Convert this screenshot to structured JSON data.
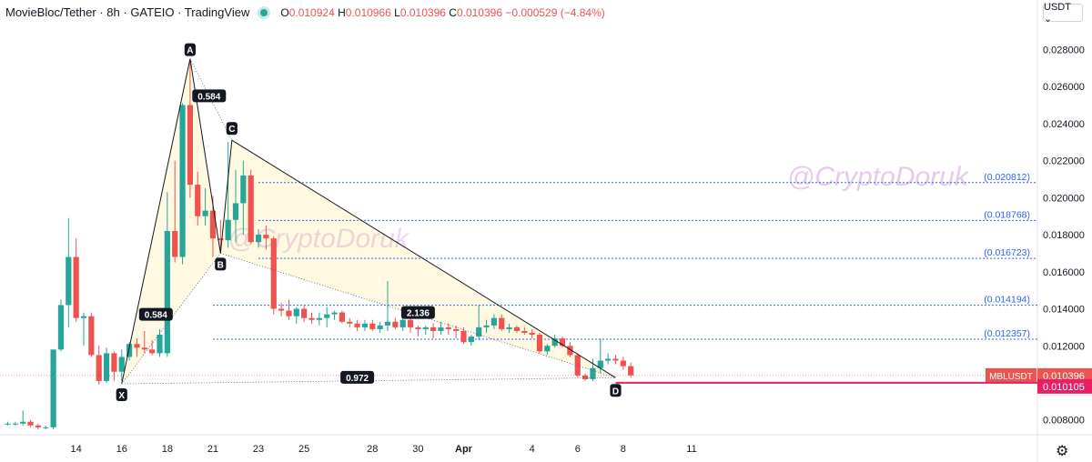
{
  "header": {
    "symbol": "MovieBloc/Tether",
    "interval": "8h",
    "exchange": "GATEIO",
    "source": "TradingView",
    "ohlc": {
      "o_label": "O",
      "o": "0.010924",
      "h_label": "H",
      "h": "0.010966",
      "l_label": "L",
      "l": "0.010396",
      "c_label": "C",
      "c": "0.010396",
      "change": "−0.000529 (−4.84%)"
    }
  },
  "currency_button": "USDT ⌄",
  "watermark": "@CryptoDoruk",
  "colors": {
    "up": "#26a69a",
    "down": "#ef5350",
    "level": "#2962ff",
    "price_tag": "#ef5350",
    "pattern_fill": "#fff8dc"
  },
  "chart_data": {
    "type": "candlestick",
    "y_range": [
      0.0072,
      0.0292
    ],
    "y_ticks": [
      "0.008000",
      "0.010000",
      "0.012000",
      "0.014000",
      "0.016000",
      "0.018000",
      "0.020000",
      "0.022000",
      "0.024000",
      "0.026000",
      "0.028000"
    ],
    "x_ticks": [
      {
        "i": 9,
        "label": "14"
      },
      {
        "i": 15,
        "label": "16"
      },
      {
        "i": 21,
        "label": "18"
      },
      {
        "i": 27,
        "label": "21"
      },
      {
        "i": 33,
        "label": "23"
      },
      {
        "i": 39,
        "label": "25"
      },
      {
        "i": 48,
        "label": "28"
      },
      {
        "i": 54,
        "label": "30"
      },
      {
        "i": 60,
        "label": "Apr"
      },
      {
        "i": 69,
        "label": "4"
      },
      {
        "i": 75,
        "label": "6"
      },
      {
        "i": 81,
        "label": "8"
      },
      {
        "i": 90,
        "label": "11"
      }
    ],
    "candles": [
      [
        0.0078,
        0.0079,
        0.0077,
        0.0078
      ],
      [
        0.0078,
        0.0079,
        0.0077,
        0.0078
      ],
      [
        0.0078,
        0.0085,
        0.0077,
        0.0079
      ],
      [
        0.0079,
        0.008,
        0.0076,
        0.0077
      ],
      [
        0.0077,
        0.0078,
        0.0075,
        0.0076
      ],
      [
        0.0076,
        0.0077,
        0.0075,
        0.0076
      ],
      [
        0.0076,
        0.0118,
        0.0075,
        0.0118
      ],
      [
        0.0118,
        0.0145,
        0.0117,
        0.0142
      ],
      [
        0.0142,
        0.0189,
        0.013,
        0.0168
      ],
      [
        0.0168,
        0.0178,
        0.0133,
        0.0135
      ],
      [
        0.0135,
        0.0138,
        0.012,
        0.0136
      ],
      [
        0.0136,
        0.0138,
        0.0114,
        0.0115
      ],
      [
        0.0115,
        0.012,
        0.0099,
        0.0101
      ],
      [
        0.0101,
        0.0119,
        0.01,
        0.0116
      ],
      [
        0.0116,
        0.0117,
        0.0101,
        0.0106
      ],
      [
        0.0106,
        0.0118,
        0.0101,
        0.0114
      ],
      [
        0.0114,
        0.0122,
        0.0112,
        0.0121
      ],
      [
        0.0121,
        0.0124,
        0.0114,
        0.0119
      ],
      [
        0.0119,
        0.0128,
        0.0116,
        0.0118
      ],
      [
        0.0118,
        0.0123,
        0.0115,
        0.0116
      ],
      [
        0.0116,
        0.0129,
        0.0114,
        0.0126
      ],
      [
        0.0116,
        0.0203,
        0.0114,
        0.0182
      ],
      [
        0.0182,
        0.022,
        0.0165,
        0.0168
      ],
      [
        0.0168,
        0.0251,
        0.0164,
        0.025
      ],
      [
        0.025,
        0.0274,
        0.02,
        0.0207
      ],
      [
        0.0207,
        0.0214,
        0.0185,
        0.019
      ],
      [
        0.019,
        0.0205,
        0.0185,
        0.0193
      ],
      [
        0.0193,
        0.0201,
        0.0168,
        0.0178
      ],
      [
        0.0178,
        0.0188,
        0.017,
        0.0177
      ],
      [
        0.0177,
        0.023,
        0.0173,
        0.0188
      ],
      [
        0.0188,
        0.0215,
        0.0176,
        0.0197
      ],
      [
        0.0197,
        0.022,
        0.018,
        0.0212
      ],
      [
        0.0212,
        0.0215,
        0.0175,
        0.0176
      ],
      [
        0.0176,
        0.0183,
        0.0173,
        0.018
      ],
      [
        0.018,
        0.0185,
        0.0172,
        0.0178
      ],
      [
        0.0178,
        0.0179,
        0.0137,
        0.014
      ],
      [
        0.014,
        0.0143,
        0.0136,
        0.0139
      ],
      [
        0.0139,
        0.0145,
        0.0134,
        0.0136
      ],
      [
        0.0136,
        0.0141,
        0.0132,
        0.014
      ],
      [
        0.014,
        0.0142,
        0.0133,
        0.0135
      ],
      [
        0.0135,
        0.0138,
        0.0132,
        0.0134
      ],
      [
        0.0134,
        0.0138,
        0.0131,
        0.0135
      ],
      [
        0.0135,
        0.0141,
        0.013,
        0.0137
      ],
      [
        0.0137,
        0.0139,
        0.0134,
        0.0138
      ],
      [
        0.0138,
        0.0139,
        0.0132,
        0.0133
      ],
      [
        0.0133,
        0.0135,
        0.013,
        0.0132
      ],
      [
        0.0132,
        0.0134,
        0.0128,
        0.013
      ],
      [
        0.013,
        0.0134,
        0.0128,
        0.0132
      ],
      [
        0.0132,
        0.0134,
        0.0128,
        0.0129
      ],
      [
        0.0129,
        0.0133,
        0.0127,
        0.0131
      ],
      [
        0.0131,
        0.0155,
        0.0128,
        0.0133
      ],
      [
        0.0133,
        0.0135,
        0.0129,
        0.013
      ],
      [
        0.013,
        0.0135,
        0.0128,
        0.0134
      ],
      [
        0.0134,
        0.0136,
        0.0127,
        0.013
      ],
      [
        0.013,
        0.0131,
        0.0125,
        0.0129
      ],
      [
        0.0129,
        0.0131,
        0.0126,
        0.013
      ],
      [
        0.013,
        0.0132,
        0.0124,
        0.0128
      ],
      [
        0.0128,
        0.0133,
        0.0126,
        0.013
      ],
      [
        0.013,
        0.0132,
        0.0126,
        0.0129
      ],
      [
        0.0129,
        0.0131,
        0.0124,
        0.0128
      ],
      [
        0.0128,
        0.013,
        0.0121,
        0.0122
      ],
      [
        0.0122,
        0.0126,
        0.012,
        0.0125
      ],
      [
        0.0125,
        0.0142,
        0.0123,
        0.013
      ],
      [
        0.013,
        0.0134,
        0.0127,
        0.0131
      ],
      [
        0.0131,
        0.0137,
        0.0129,
        0.0135
      ],
      [
        0.0135,
        0.0137,
        0.0128,
        0.0129
      ],
      [
        0.0129,
        0.0132,
        0.0127,
        0.013
      ],
      [
        0.013,
        0.0131,
        0.0127,
        0.0128
      ],
      [
        0.0128,
        0.013,
        0.0126,
        0.0127
      ],
      [
        0.0127,
        0.0129,
        0.0124,
        0.0126
      ],
      [
        0.0126,
        0.0127,
        0.0116,
        0.0117
      ],
      [
        0.0117,
        0.0121,
        0.0115,
        0.012
      ],
      [
        0.012,
        0.0126,
        0.0119,
        0.0124
      ],
      [
        0.0124,
        0.0125,
        0.0119,
        0.012
      ],
      [
        0.012,
        0.0122,
        0.0114,
        0.0115
      ],
      [
        0.0115,
        0.0116,
        0.0103,
        0.0104
      ],
      [
        0.0104,
        0.0105,
        0.0101,
        0.0102
      ],
      [
        0.0102,
        0.0113,
        0.0101,
        0.0108
      ],
      [
        0.0108,
        0.0124,
        0.0105,
        0.0112
      ],
      [
        0.0112,
        0.0116,
        0.011,
        0.0113
      ],
      [
        0.0113,
        0.0115,
        0.011,
        0.0112
      ],
      [
        0.0112,
        0.0114,
        0.0107,
        0.0109
      ],
      [
        0.0109,
        0.0111,
        0.0103,
        0.0104
      ]
    ],
    "fib_levels": [
      {
        "value": 0.020812,
        "label": "(0.020812)",
        "from_i": 33
      },
      {
        "value": 0.018768,
        "label": "(0.018768)",
        "from_i": 33
      },
      {
        "value": 0.016723,
        "label": "(0.016723)",
        "from_i": 33
      },
      {
        "value": 0.014194,
        "label": "(0.014194)",
        "from_i": 27
      },
      {
        "value": 0.012357,
        "label": "(0.012357)",
        "from_i": 27
      }
    ],
    "pattern": {
      "X": {
        "i": 15,
        "p": 0.00995,
        "label": "X"
      },
      "A": {
        "i": 24,
        "p": 0.0275,
        "label": "A"
      },
      "B": {
        "i": 28,
        "p": 0.017,
        "label": "B"
      },
      "C": {
        "i": 29.5,
        "p": 0.0231,
        "label": "C"
      },
      "D": {
        "i": 80,
        "p": 0.01028,
        "label": "D"
      },
      "ratios": [
        {
          "label": "0.584",
          "between": [
            "X",
            "A"
          ],
          "at": [
            19.5,
            0.0137
          ]
        },
        {
          "label": "0.584",
          "between": [
            "A",
            "C"
          ],
          "at": [
            26.5,
            0.0255
          ]
        },
        {
          "label": "2.136",
          "between": [
            "B",
            "D"
          ],
          "at": [
            54,
            0.0138
          ]
        },
        {
          "label": "0.972",
          "between": [
            "X",
            "D"
          ],
          "at": [
            46,
            0.0103
          ]
        }
      ]
    },
    "price_tags": [
      {
        "label": "MBLUSDT",
        "value": "0.010396",
        "p": 0.010396
      },
      {
        "value": "0.010105",
        "p": 0.010105
      }
    ]
  }
}
